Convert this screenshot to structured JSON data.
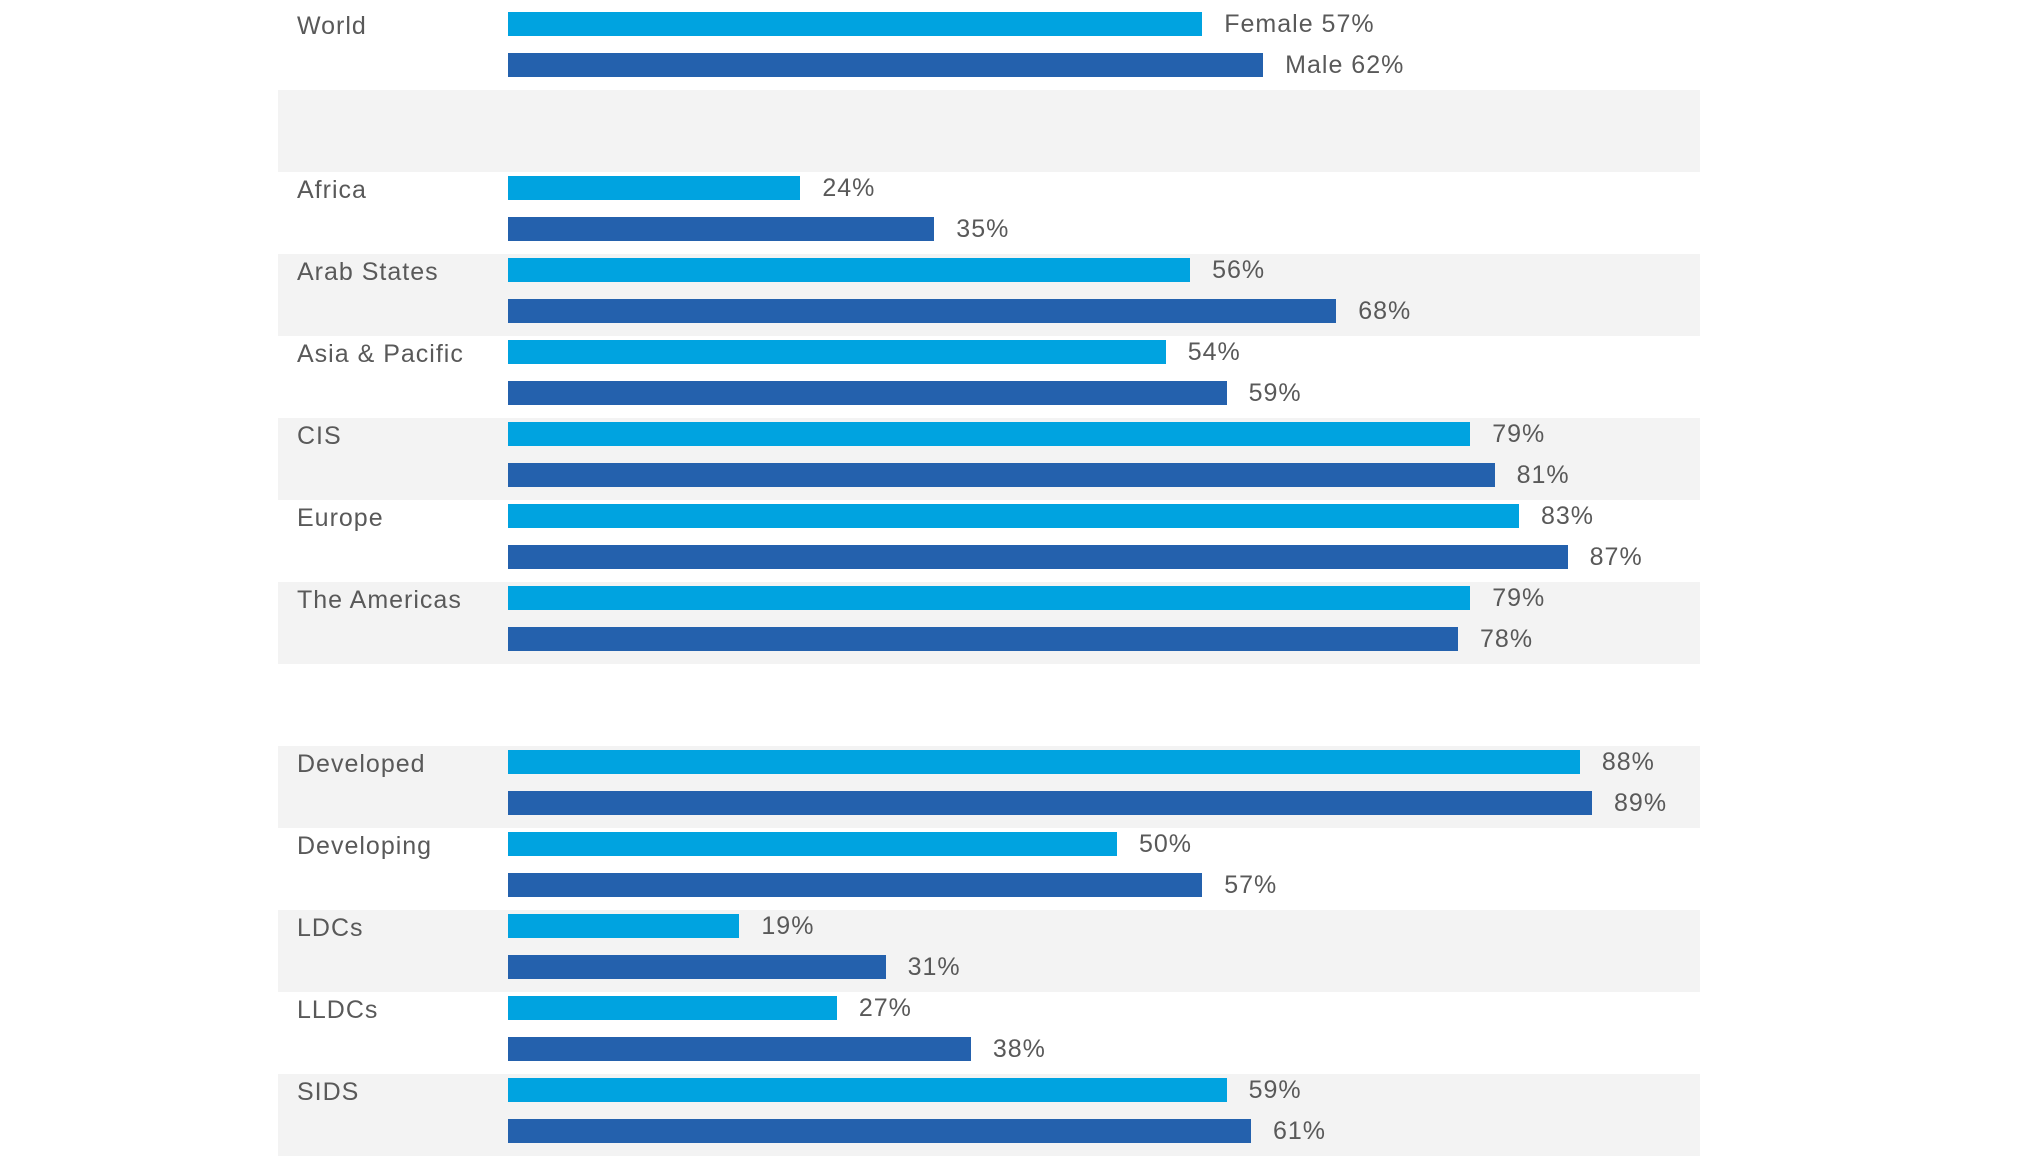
{
  "chart_data": {
    "type": "bar",
    "orientation": "horizontal",
    "title": "",
    "xlabel": "",
    "ylabel": "",
    "xlim": [
      0,
      100
    ],
    "grid": false,
    "colors": {
      "Female": "#00a3e0",
      "Male": "#2461ad",
      "band": "#f3f3f3"
    },
    "series": [
      {
        "name": "Female",
        "labels_shown": [
          false,
          true,
          true,
          true,
          true,
          true,
          true,
          true,
          true,
          true,
          true,
          true
        ]
      },
      {
        "name": "Male",
        "labels_shown": [
          false,
          true,
          true,
          true,
          true,
          true,
          true,
          true,
          true,
          true,
          true,
          true
        ]
      }
    ],
    "rows": [
      {
        "category": "World",
        "female": 57,
        "male": 62,
        "female_label": "Female  57%",
        "male_label": "Male  62%",
        "banded": false
      },
      {
        "category": "",
        "spacer": true,
        "banded": true
      },
      {
        "category": "Africa",
        "female": 24,
        "male": 35,
        "female_label": "24%",
        "male_label": "35%",
        "banded": false
      },
      {
        "category": "Arab States",
        "female": 56,
        "male": 68,
        "female_label": "56%",
        "male_label": "68%",
        "banded": true
      },
      {
        "category": "Asia & Pacific",
        "female": 54,
        "male": 59,
        "female_label": "54%",
        "male_label": "59%",
        "banded": false
      },
      {
        "category": "CIS",
        "female": 79,
        "male": 81,
        "female_label": "79%",
        "male_label": "81%",
        "banded": true
      },
      {
        "category": "Europe",
        "female": 83,
        "male": 87,
        "female_label": "83%",
        "male_label": "87%",
        "banded": false
      },
      {
        "category": "The Americas",
        "female": 79,
        "male": 78,
        "female_label": "79%",
        "male_label": "78%",
        "banded": true
      },
      {
        "category": "",
        "spacer": true,
        "banded": false
      },
      {
        "category": "Developed",
        "female": 88,
        "male": 89,
        "female_label": "88%",
        "male_label": "89%",
        "banded": true
      },
      {
        "category": "Developing",
        "female": 50,
        "male": 57,
        "female_label": "50%",
        "male_label": "57%",
        "banded": false
      },
      {
        "category": "LDCs",
        "female": 19,
        "male": 31,
        "female_label": "19%",
        "male_label": "31%",
        "banded": true
      },
      {
        "category": "LLDCs",
        "female": 27,
        "male": 38,
        "female_label": "27%",
        "male_label": "38%",
        "banded": false
      },
      {
        "category": "SIDS",
        "female": 59,
        "male": 61,
        "female_label": "59%",
        "male_label": "61%",
        "banded": true
      }
    ]
  }
}
